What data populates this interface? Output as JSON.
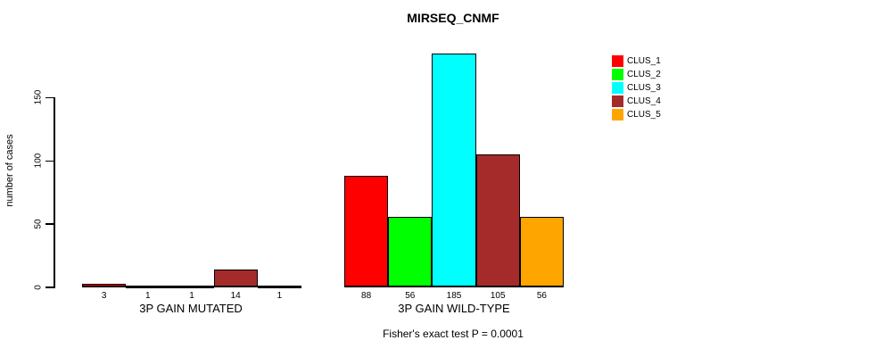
{
  "header": {
    "title": "MIRSEQ_CNMF"
  },
  "chart_data": {
    "type": "bar",
    "title": "MIRSEQ_CNMF",
    "ylabel": "number of cases",
    "xlabel": "",
    "ylim": [
      0,
      185
    ],
    "yticks": [
      0,
      50,
      100,
      150
    ],
    "grid": false,
    "legend_position": "top-right",
    "categories": [
      "3P GAIN MUTATED",
      "3P GAIN WILD-TYPE"
    ],
    "series": [
      {
        "name": "CLUS_1",
        "color": "#ff0000",
        "values": [
          3,
          88
        ]
      },
      {
        "name": "CLUS_2",
        "color": "#00ff00",
        "values": [
          1,
          56
        ]
      },
      {
        "name": "CLUS_3",
        "color": "#00ffff",
        "values": [
          1,
          185
        ]
      },
      {
        "name": "CLUS_4",
        "color": "#a52a2a",
        "values": [
          14,
          105
        ]
      },
      {
        "name": "CLUS_5",
        "color": "#ffa500",
        "values": [
          1,
          56
        ]
      }
    ],
    "bar_value_labels": {
      "3P GAIN MUTATED": [
        3,
        1,
        1,
        14,
        1
      ],
      "3P GAIN WILD-TYPE": [
        88,
        56,
        185,
        105,
        56
      ]
    },
    "annotation": "Fisher's exact test P = 0.0001"
  },
  "legend": {
    "items": [
      {
        "label": "CLUS_1",
        "color": "#ff0000"
      },
      {
        "label": "CLUS_2",
        "color": "#00ff00"
      },
      {
        "label": "CLUS_3",
        "color": "#00ffff"
      },
      {
        "label": "CLUS_4",
        "color": "#a52a2a"
      },
      {
        "label": "CLUS_5",
        "color": "#ffa500"
      }
    ]
  }
}
